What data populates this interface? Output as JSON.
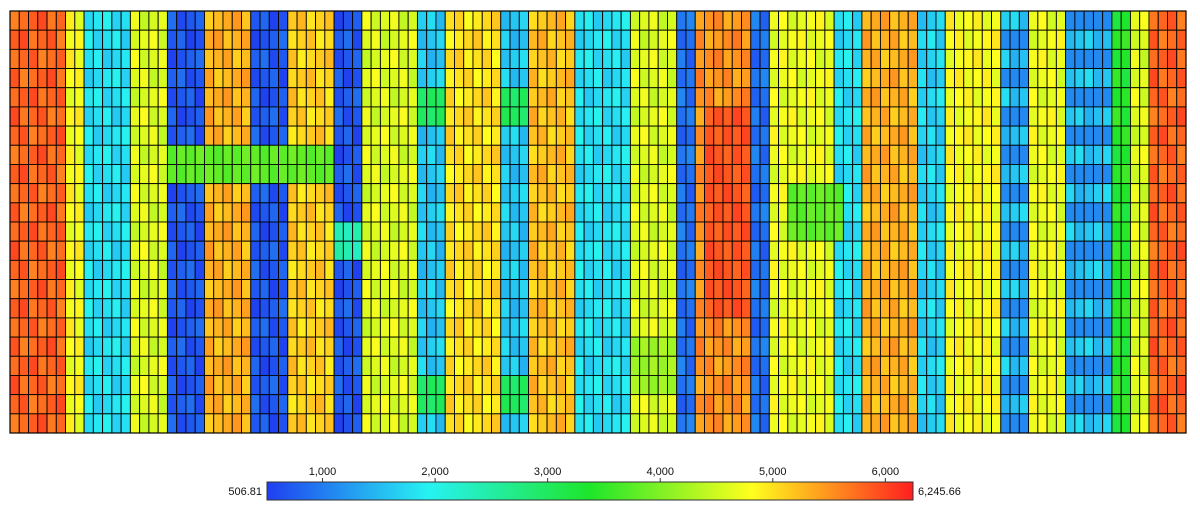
{
  "chart_data": {
    "type": "heatmap",
    "value_range": [
      506.81,
      6245.66
    ],
    "colorbar": {
      "min_label": "506.81",
      "max_label": "6,245.66",
      "ticks": [
        {
          "value": 1000,
          "label": "1,000"
        },
        {
          "value": 2000,
          "label": "2,000"
        },
        {
          "value": 3000,
          "label": "3,000"
        },
        {
          "value": 4000,
          "label": "4,000"
        },
        {
          "value": 5000,
          "label": "5,000"
        },
        {
          "value": 6000,
          "label": "6,000"
        }
      ],
      "colors": [
        "#1f3ff0",
        "#27f2f2",
        "#1ee62a",
        "#ffff1e",
        "#ff1f1f"
      ]
    },
    "grid": {
      "columns": 127,
      "rows": 22
    },
    "column_profile": [
      {
        "from": 0,
        "to": 6,
        "value": 5800
      },
      {
        "from": 6,
        "to": 8,
        "value": 4800
      },
      {
        "from": 8,
        "to": 13,
        "value": 1800
      },
      {
        "from": 13,
        "to": 17,
        "value": 4600
      },
      {
        "from": 17,
        "to": 21,
        "value": 700
      },
      {
        "from": 21,
        "to": 26,
        "value": 5300
      },
      {
        "from": 26,
        "to": 30,
        "value": 700
      },
      {
        "from": 30,
        "to": 35,
        "value": 5100
      },
      {
        "from": 35,
        "to": 38,
        "value": 700
      },
      {
        "from": 38,
        "to": 44,
        "value": 4600
      },
      {
        "from": 44,
        "to": 47,
        "value": 1600
      },
      {
        "from": 47,
        "to": 53,
        "value": 5000
      },
      {
        "from": 53,
        "to": 56,
        "value": 1600
      },
      {
        "from": 56,
        "to": 61,
        "value": 5200
      },
      {
        "from": 61,
        "to": 67,
        "value": 1800
      },
      {
        "from": 67,
        "to": 72,
        "value": 4600
      },
      {
        "from": 72,
        "to": 74,
        "value": 900
      },
      {
        "from": 74,
        "to": 80,
        "value": 5500
      },
      {
        "from": 80,
        "to": 82,
        "value": 900
      },
      {
        "from": 82,
        "to": 89,
        "value": 4700
      },
      {
        "from": 89,
        "to": 92,
        "value": 1800
      },
      {
        "from": 92,
        "to": 98,
        "value": 5300
      },
      {
        "from": 98,
        "to": 101,
        "value": 1700
      },
      {
        "from": 101,
        "to": 107,
        "value": 4800
      },
      {
        "from": 107,
        "to": 110,
        "value": 1600
      },
      {
        "from": 110,
        "to": 114,
        "value": 4700
      },
      {
        "from": 114,
        "to": 119,
        "value": 1600
      },
      {
        "from": 119,
        "to": 121,
        "value": 3400
      },
      {
        "from": 121,
        "to": 123,
        "value": 4600
      },
      {
        "from": 123,
        "to": 127,
        "value": 5800
      }
    ],
    "row_bands": [
      {
        "from_col": 17,
        "to_col": 35,
        "from_row": 7,
        "to_row": 9,
        "value": 3800
      },
      {
        "from_col": 35,
        "to_col": 38,
        "from_row": 11,
        "to_row": 13,
        "value": 2400
      },
      {
        "from_col": 44,
        "to_col": 47,
        "from_row": 4,
        "to_row": 6,
        "value": 3000
      },
      {
        "from_col": 53,
        "to_col": 56,
        "from_row": 4,
        "to_row": 6,
        "value": 3000
      },
      {
        "from_col": 44,
        "to_col": 47,
        "from_row": 19,
        "to_row": 21,
        "value": 3000
      },
      {
        "from_col": 53,
        "to_col": 56,
        "from_row": 19,
        "to_row": 21,
        "value": 3000
      },
      {
        "from_col": 84,
        "to_col": 90,
        "from_row": 9,
        "to_row": 12,
        "value": 3800
      },
      {
        "from_col": 75,
        "to_col": 80,
        "from_row": 5,
        "to_row": 16,
        "value": 5900
      },
      {
        "from_col": 67,
        "to_col": 72,
        "from_row": 17,
        "to_row": 20,
        "value": 4200
      }
    ]
  }
}
